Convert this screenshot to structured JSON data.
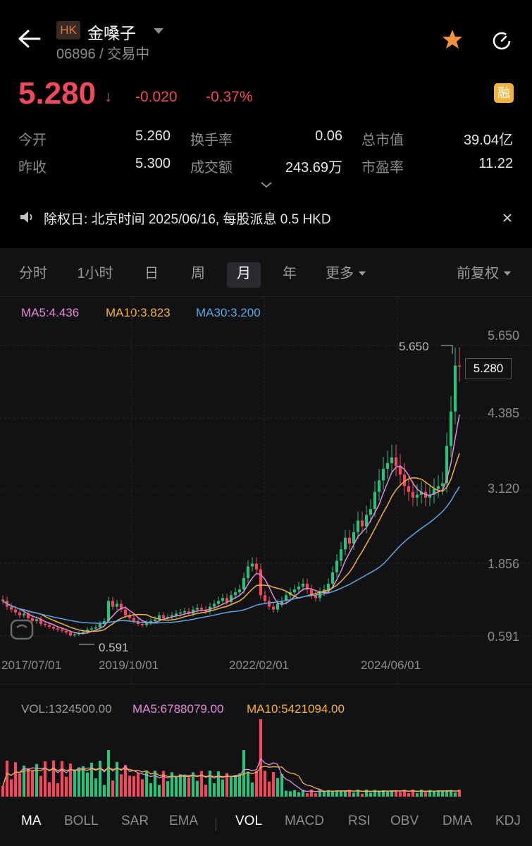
{
  "header": {
    "market_badge": "HK",
    "name": "金嗓子",
    "code_status": "06896 / 交易中"
  },
  "quote": {
    "price": "5.280",
    "arrow": "↓",
    "change": "-0.020",
    "change_pct": "-0.37%",
    "margin_badge": "融"
  },
  "stats": [
    {
      "label": "今开",
      "value": "5.260"
    },
    {
      "label": "换手率",
      "value": "0.06"
    },
    {
      "label": "总市值",
      "value": "39.04亿"
    },
    {
      "label": "昨收",
      "value": "5.300"
    },
    {
      "label": "成交额",
      "value": "243.69万"
    },
    {
      "label": "市盈率",
      "value": "11.22"
    }
  ],
  "notice": {
    "text": "除权日: 北京时间 2025/06/16, 每股派息 0.5 HKD"
  },
  "period_tabs": [
    "分时",
    "1小时",
    "日",
    "周",
    "月",
    "年",
    "更多"
  ],
  "active_period": "月",
  "adjust_mode": "前复权",
  "ma_legend": {
    "ma5": "MA5:4.436",
    "ma10": "MA10:3.823",
    "ma30": "MA30:3.200"
  },
  "vol_legend": {
    "vol": "VOL:1324500.00",
    "ma5": "MA5:6788079.00",
    "ma10": "MA10:5421094.00"
  },
  "indicator_tabs": [
    "MA",
    "BOLL",
    "SAR",
    "EMA",
    "VOL",
    "MACD",
    "RSI",
    "OBV",
    "DMA",
    "KDJ"
  ],
  "active_indicators": [
    "MA",
    "VOL"
  ],
  "colors": {
    "up": "#f0495d",
    "down": "#2fbf7a",
    "ma5": "#e48bd8",
    "ma10": "#f0b43c",
    "ma30": "#5aa8e0",
    "star": "#f0923a"
  },
  "chart_data": {
    "type": "candlestick",
    "y_ticks": [
      "5.650",
      "4.385",
      "3.120",
      "1.856",
      "0.591"
    ],
    "x_ticks": [
      "2017/07/01",
      "2019/10/01",
      "2022/02/01",
      "2024/06/01"
    ],
    "high_label": "5.650",
    "low_label": "0.591",
    "last_price_label": "5.280",
    "ylim": [
      0.591,
      5.65
    ],
    "series_close": [
      1.2,
      1.1,
      1.05,
      1.0,
      0.95,
      0.98,
      0.9,
      0.85,
      0.88,
      0.8,
      0.78,
      0.75,
      0.72,
      0.7,
      0.68,
      0.65,
      0.6,
      0.62,
      0.64,
      0.66,
      0.7,
      0.72,
      0.74,
      0.8,
      0.85,
      1.2,
      1.1,
      1.15,
      1.05,
      0.95,
      0.9,
      0.85,
      0.8,
      0.78,
      0.82,
      0.85,
      0.88,
      0.95,
      0.9,
      0.92,
      0.95,
      0.98,
      1.0,
      1.02,
      0.98,
      1.05,
      1.08,
      1.05,
      1.02,
      1.1,
      1.15,
      1.2,
      1.25,
      1.18,
      1.3,
      1.35,
      1.4,
      1.6,
      1.8,
      1.85,
      1.75,
      1.3,
      1.2,
      1.1,
      1.05,
      1.15,
      1.2,
      1.3,
      1.35,
      1.4,
      1.45,
      1.5,
      1.4,
      1.3,
      1.25,
      1.35,
      1.4,
      1.5,
      1.7,
      1.9,
      2.1,
      2.3,
      2.2,
      2.4,
      2.6,
      2.5,
      2.7,
      2.8,
      3.1,
      3.3,
      3.5,
      3.6,
      3.7,
      3.55,
      3.4,
      3.2,
      3.1,
      3.0,
      3.05,
      3.1,
      3.0,
      3.05,
      3.15,
      3.2,
      3.25,
      3.9,
      4.5,
      5.3,
      5.28
    ],
    "volume_ma5": 6788079,
    "volume_ma10": 5421094,
    "last_volume": 1324500
  }
}
